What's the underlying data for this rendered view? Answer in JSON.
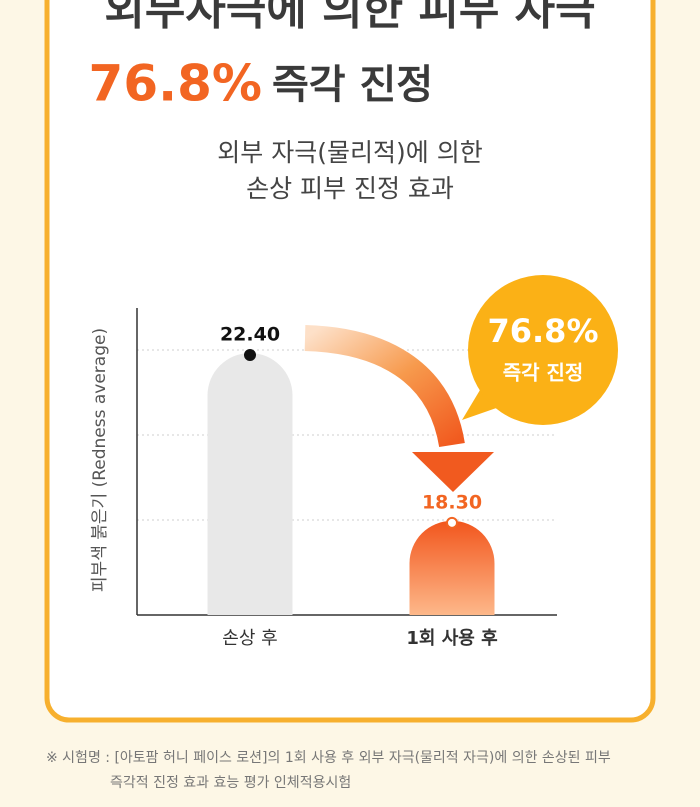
{
  "header": {
    "title": "외부자극에 의한 피부 자극",
    "highlight": "76.8%",
    "highlight_text": "즉각 진정",
    "subtitle_lines": [
      "외부 자극(물리적)에 의한",
      "손상 피부 진정 효과"
    ]
  },
  "chart_data": {
    "type": "bar",
    "y_label": "피부색 붉은기 (Redness average)",
    "categories": [
      "손상 후",
      "1회 사용 후"
    ],
    "values": [
      22.4,
      18.3
    ],
    "value_labels": [
      "22.40",
      "18.30"
    ],
    "colors": [
      "#e8e8e8",
      "#f26a21"
    ],
    "ylim": [
      16,
      23.5
    ],
    "callout": {
      "value": "76.8%",
      "text": "즉각 진정"
    }
  },
  "footnotes": [
    "※ 시험명 : [아토팜 허니 페이스 로션]의 1회 사용 후 외부 자극(물리적 자극)에 의한 손상된 피부",
    "즉각적 진정 효과 효능 평가 인체적용시험"
  ]
}
